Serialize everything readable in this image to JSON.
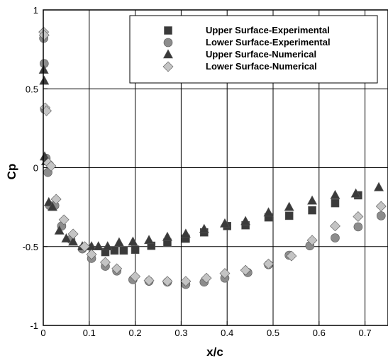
{
  "chart_data": {
    "type": "scatter",
    "title": "",
    "xlabel": "x/c",
    "ylabel": "Cp",
    "xlim": [
      0,
      0.75
    ],
    "ylim": [
      -1,
      1
    ],
    "x_ticks": [
      0,
      0.1,
      0.2,
      0.3,
      0.4,
      0.5,
      0.6,
      0.7
    ],
    "x_tick_labels": [
      "0",
      "0.1",
      "0.2",
      "0.3",
      "0.4",
      "0.5",
      "0.6",
      "0.7"
    ],
    "y_ticks": [
      -1,
      -0.5,
      0,
      0.5,
      1
    ],
    "y_tick_labels": [
      "-1",
      "-0.5",
      "0",
      "0.5",
      "1"
    ],
    "grid": true,
    "legend_position": "top-right",
    "series": [
      {
        "name": "Upper Surface-Experimental",
        "marker": "square",
        "color": "#3a3a3a",
        "x": [
          0.135,
          0.155,
          0.175,
          0.2,
          0.235,
          0.27,
          0.31,
          0.35,
          0.4,
          0.44,
          0.49,
          0.535,
          0.585,
          0.635,
          0.685
        ],
        "y": [
          -0.535,
          -0.525,
          -0.525,
          -0.52,
          -0.495,
          -0.475,
          -0.45,
          -0.41,
          -0.37,
          -0.365,
          -0.315,
          -0.305,
          -0.27,
          -0.225,
          -0.175
        ]
      },
      {
        "name": "Lower Surface-Experimental",
        "marker": "circle",
        "color": "#8c8c8c",
        "x": [
          0.001,
          0.002,
          0.003,
          0.006,
          0.01,
          0.014,
          0.025,
          0.04,
          0.06,
          0.085,
          0.105,
          0.135,
          0.16,
          0.195,
          0.23,
          0.27,
          0.31,
          0.35,
          0.395,
          0.445,
          0.49,
          0.535,
          0.58,
          0.635,
          0.685,
          0.735
        ],
        "y": [
          0.82,
          0.66,
          0.37,
          0.06,
          -0.03,
          -0.24,
          -0.24,
          -0.37,
          -0.455,
          -0.515,
          -0.575,
          -0.625,
          -0.655,
          -0.71,
          -0.72,
          -0.725,
          -0.74,
          -0.725,
          -0.7,
          -0.665,
          -0.615,
          -0.555,
          -0.495,
          -0.445,
          -0.375,
          -0.305
        ]
      },
      {
        "name": "Upper Surface-Numerical",
        "marker": "triangle",
        "color": "#3a3a3a",
        "x": [
          0.001,
          0.002,
          0.003,
          0.006,
          0.012,
          0.02,
          0.035,
          0.05,
          0.065,
          0.085,
          0.105,
          0.12,
          0.14,
          0.165,
          0.195,
          0.23,
          0.27,
          0.31,
          0.35,
          0.395,
          0.44,
          0.49,
          0.535,
          0.585,
          0.635,
          0.68,
          0.73
        ],
        "y": [
          0.62,
          0.55,
          0.07,
          0.04,
          -0.22,
          -0.25,
          -0.4,
          -0.45,
          -0.47,
          -0.5,
          -0.5,
          -0.5,
          -0.5,
          -0.475,
          -0.47,
          -0.46,
          -0.44,
          -0.42,
          -0.39,
          -0.355,
          -0.34,
          -0.285,
          -0.25,
          -0.21,
          -0.175,
          -0.165,
          -0.125
        ]
      },
      {
        "name": "Lower Surface-Numerical",
        "marker": "diamond",
        "color": "#c4c4c4",
        "x": [
          0.001,
          0.002,
          0.004,
          0.007,
          0.011,
          0.017,
          0.028,
          0.045,
          0.065,
          0.09,
          0.105,
          0.135,
          0.16,
          0.2,
          0.23,
          0.27,
          0.31,
          0.355,
          0.395,
          0.44,
          0.49,
          0.54,
          0.585,
          0.635,
          0.685,
          0.735
        ],
        "y": [
          0.86,
          0.84,
          0.38,
          0.36,
          0.03,
          0.01,
          -0.2,
          -0.33,
          -0.42,
          -0.5,
          -0.55,
          -0.6,
          -0.64,
          -0.69,
          -0.715,
          -0.72,
          -0.72,
          -0.7,
          -0.67,
          -0.65,
          -0.61,
          -0.56,
          -0.46,
          -0.37,
          -0.31,
          -0.245
        ]
      }
    ]
  }
}
